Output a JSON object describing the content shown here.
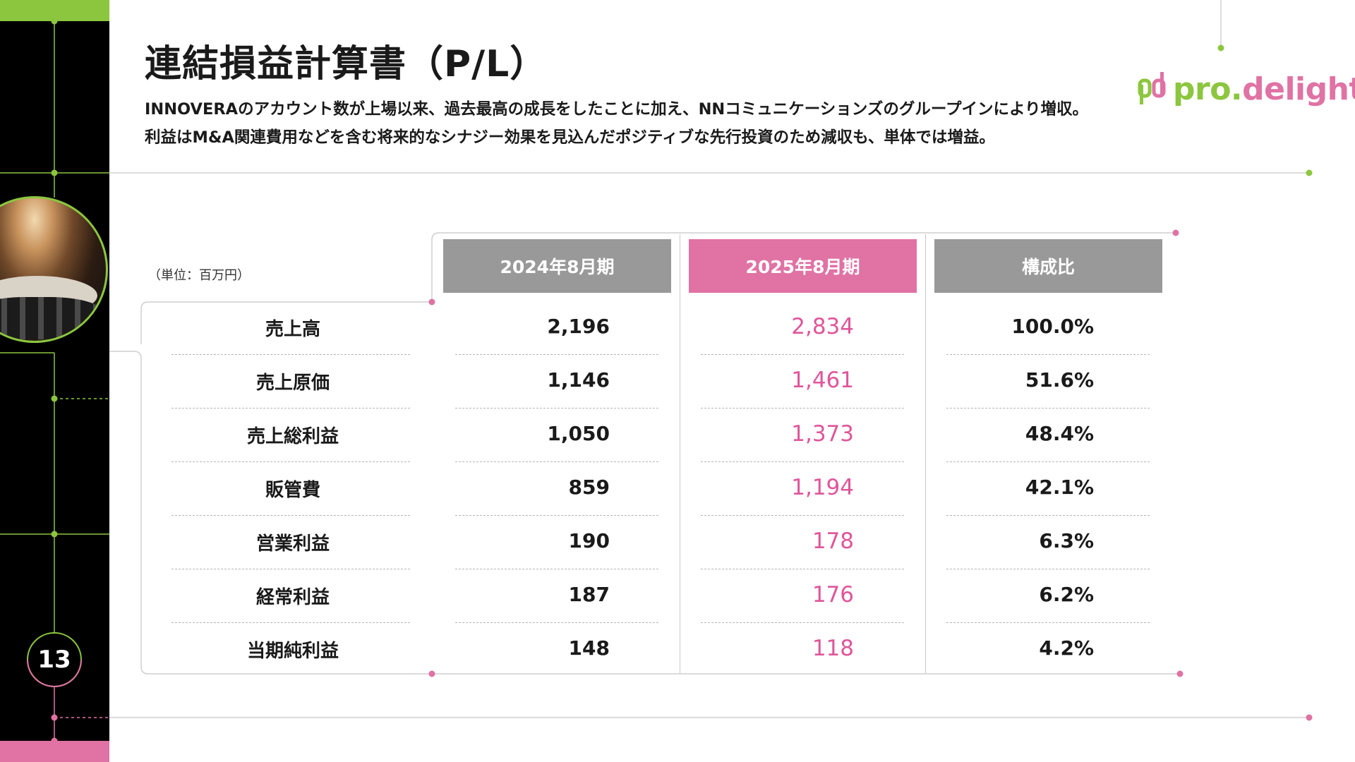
{
  "page": {
    "title": "連結損益計算書（P/L）",
    "description_line1": "INNOVERAのアカウント数が上場以来、過去最高の成長をしたことに加え、NNコミュニケーションズのグループインにより増収。",
    "description_line2": "利益はM&A関連費用などを含む将来的なシナジー効果を見込んだポジティブな先行投資のため減収も、単体では増益。",
    "page_number": "13",
    "unit_label": "（単位：百万円）"
  },
  "logo": {
    "text_a": "pro.",
    "text_b": "delight"
  },
  "colors": {
    "green": "#8cc63f",
    "pink": "#e072a4",
    "gray_header": "#999999"
  },
  "table": {
    "headers": [
      "2024年8月期",
      "2025年8月期",
      "構成比"
    ],
    "rows": [
      {
        "label": "売上高",
        "fy2024": "2,196",
        "fy2025": "2,834",
        "ratio": "100.0%"
      },
      {
        "label": "売上原価",
        "fy2024": "1,146",
        "fy2025": "1,461",
        "ratio": "51.6%"
      },
      {
        "label": "売上総利益",
        "fy2024": "1,050",
        "fy2025": "1,373",
        "ratio": "48.4%"
      },
      {
        "label": "販管費",
        "fy2024": "859",
        "fy2025": "1,194",
        "ratio": "42.1%"
      },
      {
        "label": "営業利益",
        "fy2024": "190",
        "fy2025": "178",
        "ratio": "6.3%"
      },
      {
        "label": "経常利益",
        "fy2024": "187",
        "fy2025": "176",
        "ratio": "6.2%"
      },
      {
        "label": "当期純利益",
        "fy2024": "148",
        "fy2025": "118",
        "ratio": "4.2%"
      }
    ]
  }
}
